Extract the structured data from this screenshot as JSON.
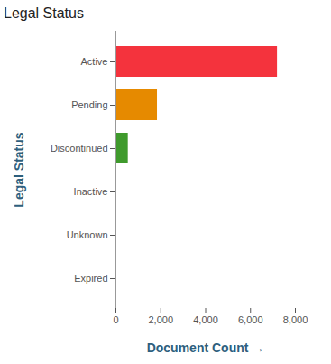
{
  "chart_data": {
    "type": "bar",
    "orientation": "horizontal",
    "title": "Legal Status",
    "xlabel": "Document Count",
    "ylabel": "Legal Status",
    "categories": [
      "Active",
      "Pending",
      "Discontinued",
      "Inactive",
      "Unknown",
      "Expired"
    ],
    "values": [
      7200,
      1850,
      550,
      40,
      20,
      5
    ],
    "colors": [
      "#f4333d",
      "#e68a00",
      "#3f9a2c",
      "#1aa0c0",
      "#4a5a7a",
      "#8fd6d6"
    ],
    "xlim": [
      0,
      8000
    ],
    "xticks": [
      0,
      {
        "value": 2000,
        "label": "2,000"
      },
      {
        "value": 4000,
        "label": "4,000"
      },
      {
        "value": 6000,
        "label": "6,000"
      },
      {
        "value": 8000,
        "label": "8,000"
      }
    ],
    "grid": false
  }
}
